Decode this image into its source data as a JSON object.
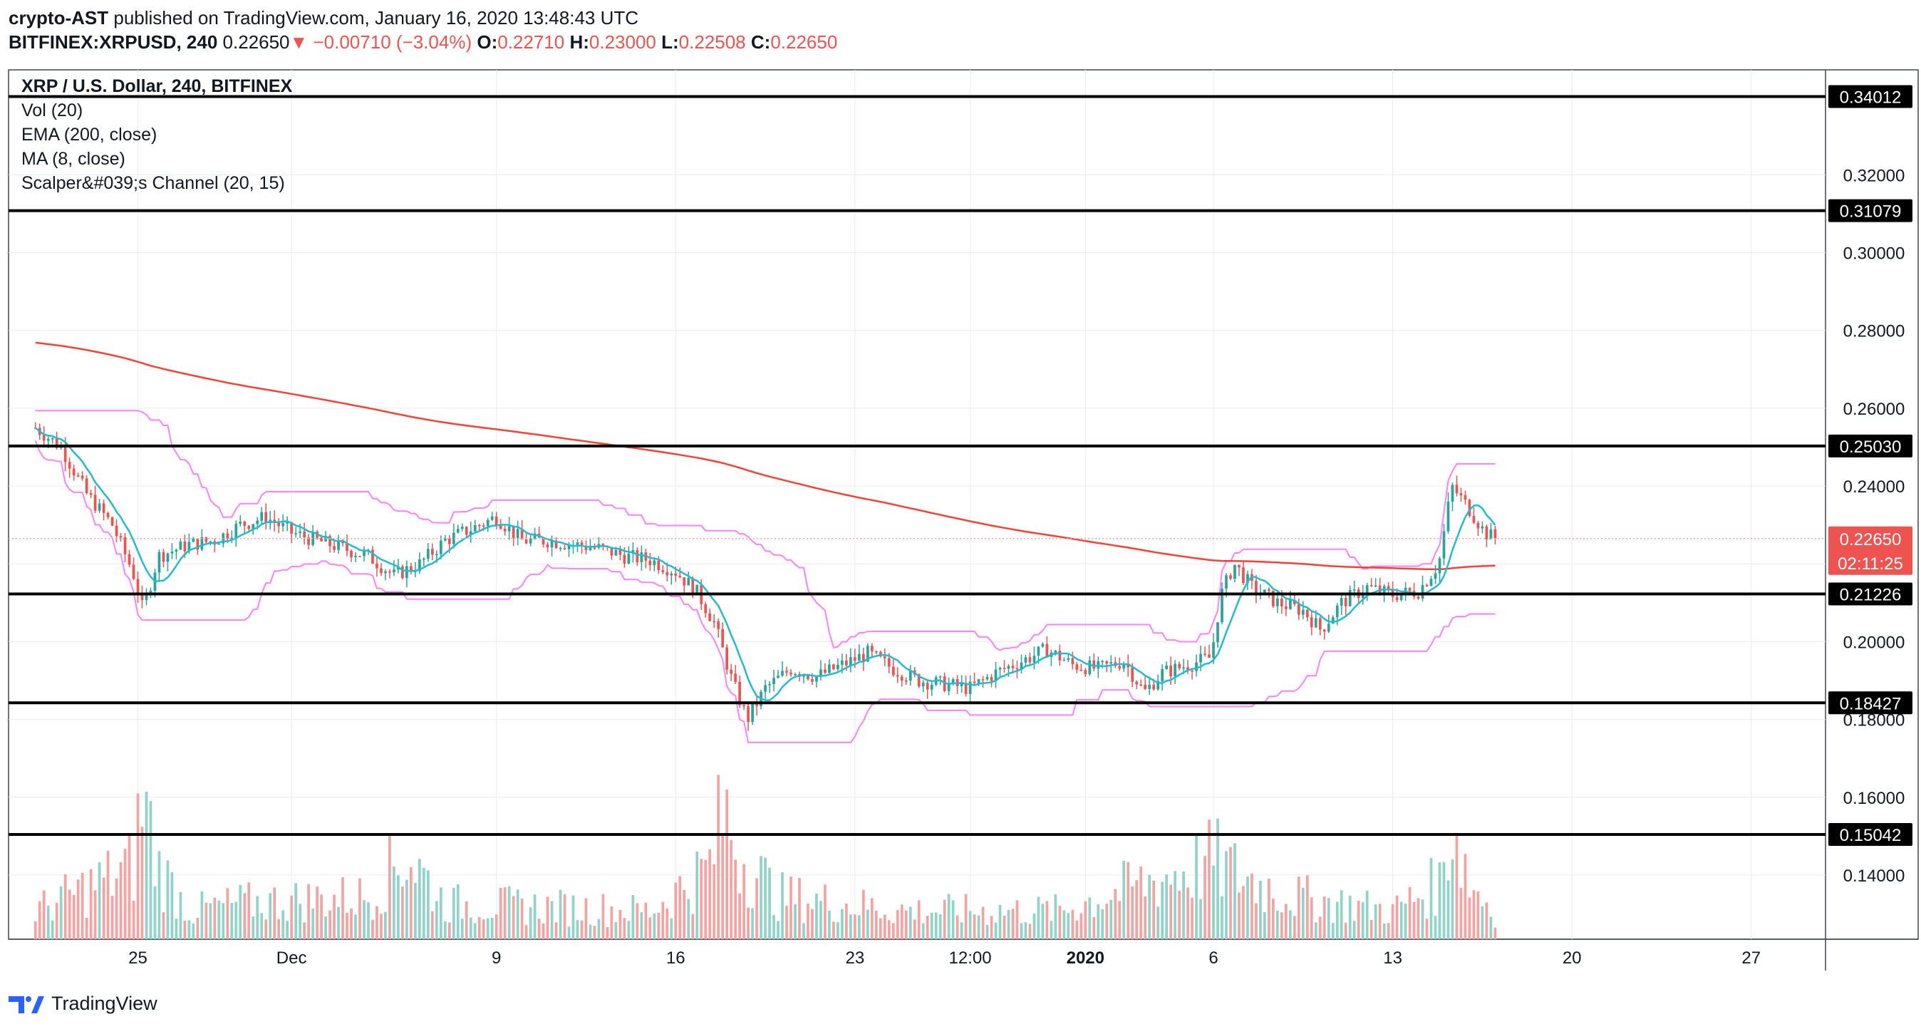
{
  "header": {
    "author": "crypto-AST",
    "published_text": "published on TradingView.com, January 16, 2020 13:48:43 UTC",
    "symbol": "BITFINEX:XRPUSD, 240",
    "last": "0.22650",
    "arrow": "▼",
    "change": "−0.00710 (−3.04%)",
    "open_label": "O:",
    "open": "0.22710",
    "high_label": "H:",
    "high": "0.23000",
    "low_label": "L:",
    "low": "0.22508",
    "close_label": "C:",
    "close": "0.22650"
  },
  "legend": {
    "title": "XRP / U.S. Dollar, 240, BITFINEX",
    "items": [
      "Vol (20)",
      "EMA (200, close)",
      "MA (8, close)",
      "Scalper&#039;s Channel (20, 15)"
    ]
  },
  "footer": {
    "brand": "TradingView"
  },
  "colors": {
    "up": "#26a69a",
    "down": "#ef5350",
    "up_vol": "#8fd3c9",
    "down_vol": "#f5a3a1",
    "ema": "#f44336",
    "ma": "#1fbcd2",
    "channel": "#ff80ff",
    "hline": "#000000",
    "grid": "#e9ecf2",
    "price_box": "#ef5350",
    "hline_label_bg": "#000000"
  },
  "chart_data": {
    "type": "candlestick",
    "y_axis": {
      "range": [
        0.1235,
        0.347
      ],
      "ticks": [
        "0.14000",
        "0.16000",
        "0.18000",
        "0.20000",
        "0.22000",
        "0.24000",
        "0.26000",
        "0.28000",
        "0.30000",
        "0.32000"
      ]
    },
    "x_axis": {
      "tick_labels": [
        "25",
        "Dec",
        "9",
        "16",
        "23",
        "12:00",
        "2020",
        "6",
        "13",
        "20",
        "27"
      ],
      "tick_days": [
        4,
        10,
        18,
        25,
        32,
        36.5,
        41,
        46,
        53,
        60,
        67
      ],
      "range_days": [
        -1.05,
        69.9
      ]
    },
    "horizontal_lines": [
      0.34012,
      0.31079,
      0.2503,
      0.21226,
      0.18427,
      0.15042
    ],
    "current_price": {
      "value": 0.2265,
      "label": "0.22650",
      "countdown": "02:11:25"
    },
    "close_path": [
      [
        0,
        0.255
      ],
      [
        1,
        0.25
      ],
      [
        2,
        0.238
      ],
      [
        3,
        0.23
      ],
      [
        3.8,
        0.218
      ],
      [
        4.2,
        0.208
      ],
      [
        4.8,
        0.222
      ],
      [
        6,
        0.225
      ],
      [
        7,
        0.226
      ],
      [
        8,
        0.23
      ],
      [
        9,
        0.232
      ],
      [
        10,
        0.228
      ],
      [
        11,
        0.226
      ],
      [
        12,
        0.224
      ],
      [
        13,
        0.222
      ],
      [
        14,
        0.217
      ],
      [
        15,
        0.22
      ],
      [
        16,
        0.226
      ],
      [
        17,
        0.229
      ],
      [
        18,
        0.232
      ],
      [
        19,
        0.226
      ],
      [
        20,
        0.226
      ],
      [
        21,
        0.225
      ],
      [
        22,
        0.224
      ],
      [
        23,
        0.222
      ],
      [
        24,
        0.221
      ],
      [
        25,
        0.218
      ],
      [
        25.8,
        0.213
      ],
      [
        26.5,
        0.205
      ],
      [
        27.2,
        0.19
      ],
      [
        27.8,
        0.18
      ],
      [
        28.5,
        0.188
      ],
      [
        29.5,
        0.193
      ],
      [
        30.5,
        0.191
      ],
      [
        31.5,
        0.194
      ],
      [
        32.5,
        0.197
      ],
      [
        33.5,
        0.193
      ],
      [
        34.5,
        0.19
      ],
      [
        35.5,
        0.189
      ],
      [
        36.5,
        0.188
      ],
      [
        37.5,
        0.192
      ],
      [
        38.5,
        0.195
      ],
      [
        39.5,
        0.198
      ],
      [
        40.5,
        0.194
      ],
      [
        41.5,
        0.193
      ],
      [
        42.5,
        0.195
      ],
      [
        43.3,
        0.187
      ],
      [
        44,
        0.192
      ],
      [
        45,
        0.194
      ],
      [
        45.9,
        0.196
      ],
      [
        46.3,
        0.212
      ],
      [
        46.8,
        0.22
      ],
      [
        47.5,
        0.214
      ],
      [
        48.5,
        0.21
      ],
      [
        49.5,
        0.208
      ],
      [
        50.2,
        0.203
      ],
      [
        51,
        0.21
      ],
      [
        52,
        0.214
      ],
      [
        53,
        0.212
      ],
      [
        54,
        0.213
      ],
      [
        54.8,
        0.22
      ],
      [
        55.3,
        0.24
      ],
      [
        56,
        0.234
      ],
      [
        56.6,
        0.228
      ],
      [
        57,
        0.2265
      ]
    ],
    "volume_profile": [
      [
        0,
        0.2
      ],
      [
        3.8,
        0.5
      ],
      [
        4.2,
        1.0
      ],
      [
        4.8,
        0.5
      ],
      [
        6,
        0.2
      ],
      [
        8,
        0.25
      ],
      [
        13,
        0.3
      ],
      [
        14.5,
        0.6
      ],
      [
        16,
        0.25
      ],
      [
        24,
        0.2
      ],
      [
        26.3,
        0.5
      ],
      [
        26.9,
        0.9
      ],
      [
        27.5,
        0.6
      ],
      [
        29,
        0.3
      ],
      [
        34,
        0.2
      ],
      [
        40,
        0.2
      ],
      [
        46,
        0.55
      ],
      [
        47,
        0.45
      ],
      [
        49,
        0.3
      ],
      [
        53,
        0.2
      ],
      [
        54.9,
        0.4
      ],
      [
        55.3,
        0.88
      ],
      [
        56,
        0.4
      ],
      [
        57,
        0.2
      ]
    ]
  }
}
